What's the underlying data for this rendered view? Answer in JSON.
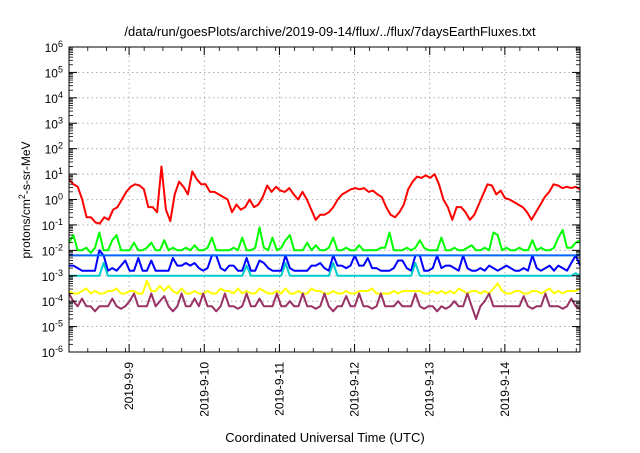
{
  "chart_data": {
    "type": "line",
    "title": "/data/run/goesPlots/archive/2019-09-14/flux/../flux/7daysEarthFluxes.txt",
    "xlabel": "Coordinated Universal Time (UTC)",
    "ylabel_main": "protons/cm",
    "ylabel_sup": "2",
    "ylabel_tail": "-s-sr-MeV",
    "x_ticks": [
      "2019-9-9",
      "2019-9-10",
      "2019-9-11",
      "2019-9-12",
      "2019-9-13",
      "2019-9-14"
    ],
    "y_ticks_exp": [
      "-6",
      "-5",
      "-4",
      "-3",
      "-2",
      "-1",
      "0",
      "1",
      "2",
      "3",
      "4",
      "5",
      "6"
    ],
    "y_tick_base": "10",
    "xlim_days": [
      0,
      6.8
    ],
    "ylim_log10": [
      -6,
      6
    ],
    "grid": true,
    "legend": "none",
    "x_unit": "days",
    "series": [
      {
        "color": "#ff0000",
        "log_values": [
          0.8,
          0.6,
          0.5,
          0.0,
          -0.7,
          -0.7,
          -0.9,
          -0.95,
          -0.7,
          -0.8,
          -0.4,
          -0.3,
          0.0,
          0.3,
          0.5,
          0.6,
          0.55,
          0.4,
          -0.3,
          -0.3,
          -0.5,
          1.3,
          -0.4,
          -0.85,
          0.2,
          0.7,
          0.5,
          0.2,
          1.1,
          0.8,
          0.6,
          0.6,
          0.3,
          0.3,
          0.2,
          0.1,
          0.0,
          -0.5,
          -0.2,
          -0.4,
          -0.3,
          0.0,
          -0.3,
          -0.2,
          0.1,
          0.55,
          0.3,
          0.5,
          0.35,
          0.3,
          0.45,
          0.2,
          0.0,
          0.3,
          0.0,
          -0.4,
          -0.8,
          -0.6,
          -0.6,
          -0.5,
          -0.3,
          0.0,
          0.2,
          0.3,
          0.4,
          0.45,
          0.4,
          0.45,
          0.3,
          0.35,
          0.2,
          0.1,
          -0.3,
          -0.6,
          -0.7,
          -0.5,
          -0.2,
          0.4,
          0.7,
          0.9,
          0.85,
          0.95,
          0.85,
          1.0,
          0.6,
          0.0,
          -0.3,
          -0.8,
          -0.3,
          -0.3,
          -0.5,
          -0.8,
          -0.6,
          -0.2,
          0.2,
          0.6,
          0.55,
          0.2,
          0.35,
          0.05,
          0.0,
          -0.1,
          -0.2,
          -0.3,
          -0.5,
          -0.8,
          -0.5,
          -0.2,
          0.1,
          0.3,
          0.6,
          0.55,
          0.45,
          0.5,
          0.45,
          0.5,
          0.4
        ]
      },
      {
        "color": "#00ff00",
        "log_values": [
          -1.7,
          -1.4,
          -2.0,
          -2.0,
          -1.9,
          -2.1,
          -1.9,
          -1.3,
          -2.0,
          -2.0,
          -1.6,
          -1.4,
          -2.0,
          -2.0,
          -2.0,
          -1.7,
          -2.0,
          -2.0,
          -1.9,
          -1.7,
          -2.0,
          -2.0,
          -1.6,
          -2.0,
          -1.9,
          -2.0,
          -2.0,
          -1.9,
          -2.0,
          -1.8,
          -2.0,
          -2.0,
          -1.9,
          -1.5,
          -2.0,
          -2.0,
          -2.0,
          -2.0,
          -1.9,
          -2.0,
          -1.5,
          -2.0,
          -2.0,
          -1.9,
          -1.1,
          -1.9,
          -2.0,
          -1.5,
          -2.0,
          -1.9,
          -1.6,
          -1.4,
          -2.0,
          -2.0,
          -2.0,
          -1.7,
          -2.0,
          -1.8,
          -2.0,
          -2.0,
          -1.9,
          -1.5,
          -2.0,
          -2.0,
          -1.9,
          -2.0,
          -2.0,
          -1.8,
          -2.0,
          -2.0,
          -2.0,
          -2.0,
          -1.9,
          -1.9,
          -1.3,
          -2.0,
          -2.0,
          -2.0,
          -1.9,
          -2.0,
          -1.9,
          -1.6,
          -1.9,
          -2.0,
          -2.0,
          -2.0,
          -1.5,
          -2.0,
          -2.0,
          -1.9,
          -2.0,
          -2.0,
          -1.9,
          -1.8,
          -2.0,
          -2.0,
          -1.9,
          -2.0,
          -1.3,
          -1.4,
          -2.0,
          -1.9,
          -2.0,
          -2.0,
          -1.9,
          -2.0,
          -2.0,
          -1.6,
          -2.0,
          -1.9,
          -2.0,
          -2.0,
          -1.9,
          -1.5,
          -1.2,
          -1.9,
          -1.9,
          -1.7,
          -1.6
        ]
      },
      {
        "color": "#0000ff",
        "log_values": [
          -2.6,
          -2.6,
          -2.7,
          -2.8,
          -2.8,
          -2.8,
          -2.8,
          -2.0,
          -2.2,
          -2.8,
          -2.7,
          -2.8,
          -2.6,
          -2.4,
          -2.8,
          -2.8,
          -2.3,
          -2.8,
          -2.8,
          -2.4,
          -2.8,
          -2.8,
          -2.8,
          -2.8,
          -2.3,
          -2.6,
          -2.6,
          -2.5,
          -2.6,
          -2.5,
          -2.7,
          -2.8,
          -2.7,
          -2.2,
          -2.2,
          -2.7,
          -2.8,
          -2.6,
          -2.6,
          -2.8,
          -2.8,
          -2.3,
          -2.8,
          -2.8,
          -2.4,
          -2.5,
          -2.7,
          -2.8,
          -2.8,
          -2.8,
          -2.2,
          -2.7,
          -2.8,
          -2.8,
          -2.8,
          -2.8,
          -2.6,
          -2.6,
          -2.5,
          -2.7,
          -2.8,
          -2.2,
          -2.6,
          -2.6,
          -2.7,
          -2.6,
          -2.2,
          -2.6,
          -2.6,
          -2.3,
          -2.7,
          -2.7,
          -2.8,
          -2.8,
          -2.8,
          -2.7,
          -2.4,
          -2.4,
          -2.7,
          -2.8,
          -2.2,
          -2.2,
          -2.8,
          -2.8,
          -2.7,
          -2.2,
          -2.7,
          -2.6,
          -2.6,
          -2.7,
          -2.8,
          -2.2,
          -2.7,
          -2.8,
          -2.8,
          -2.7,
          -2.8,
          -2.6,
          -2.7,
          -2.8,
          -2.7,
          -2.6,
          -2.7,
          -2.8,
          -2.8,
          -2.7,
          -2.8,
          -2.2,
          -2.7,
          -2.8,
          -2.7,
          -2.6,
          -2.8,
          -2.6,
          -2.7,
          -2.8,
          -2.5,
          -2.2,
          -2.6
        ]
      },
      {
        "color": "#0066ff",
        "log_values": [
          -2.2,
          -2.2,
          -2.2,
          -2.2,
          -2.2,
          -2.2,
          -2.2,
          -2.2,
          -2.2,
          -2.2,
          -2.2,
          -2.2,
          -2.2,
          -2.2,
          -2.2,
          -2.2,
          -2.2,
          -2.2,
          -2.2,
          -2.2,
          -2.2,
          -2.2,
          -2.2,
          -2.2,
          -2.2,
          -2.2,
          -2.2,
          -2.2,
          -2.2,
          -2.2,
          -2.2,
          -2.2,
          -2.2,
          -2.2,
          -2.2,
          -2.2,
          -2.2,
          -2.2,
          -2.2,
          -2.2,
          -2.2,
          -2.2,
          -2.2,
          -2.2,
          -2.2,
          -2.2,
          -2.2,
          -2.2,
          -2.2,
          -2.2,
          -2.2,
          -2.2,
          -2.2,
          -2.2,
          -2.2,
          -2.2,
          -2.2,
          -2.2,
          -2.2,
          -2.2,
          -2.2,
          -2.2,
          -2.2,
          -2.2,
          -2.2,
          -2.2,
          -2.2,
          -2.2,
          -2.2,
          -2.2,
          -2.2,
          -2.2,
          -2.2,
          -2.2,
          -2.2,
          -2.2,
          -2.2,
          -2.2,
          -2.2,
          -2.2,
          -2.2,
          -2.2,
          -2.2,
          -2.2,
          -2.2,
          -2.2,
          -2.2,
          -2.2,
          -2.2,
          -2.2,
          -2.2,
          -2.2,
          -2.2,
          -2.2,
          -2.2,
          -2.2,
          -2.2,
          -2.2,
          -2.2,
          -2.2,
          -2.2,
          -2.2,
          -2.2,
          -2.2,
          -2.2,
          -2.2,
          -2.2,
          -2.2,
          -2.2,
          -2.2,
          -2.2,
          -2.2,
          -2.2,
          -2.2,
          -2.2,
          -2.2,
          -2.2,
          -2.2,
          -2.2
        ]
      },
      {
        "color": "#00cccc",
        "log_values": [
          -3.0,
          -3.0,
          -3.0,
          -3.0,
          -3.0,
          -3.0,
          -3.0,
          -3.0,
          -2.5,
          -3.0,
          -3.0,
          -3.0,
          -3.0,
          -3.0,
          -3.0,
          -3.0,
          -3.0,
          -3.0,
          -3.0,
          -3.0,
          -3.0,
          -3.0,
          -3.0,
          -3.0,
          -3.0,
          -3.0,
          -3.0,
          -3.0,
          -3.0,
          -3.0,
          -3.0,
          -3.0,
          -3.0,
          -3.0,
          -3.0,
          -3.0,
          -3.0,
          -3.0,
          -3.0,
          -3.0,
          -3.0,
          -2.6,
          -3.0,
          -3.0,
          -3.0,
          -3.0,
          -3.0,
          -3.0,
          -3.0,
          -3.0,
          -2.5,
          -3.0,
          -3.0,
          -3.0,
          -3.0,
          -3.0,
          -3.0,
          -3.0,
          -3.0,
          -3.0,
          -3.0,
          -2.5,
          -3.0,
          -3.0,
          -3.0,
          -3.0,
          -3.0,
          -3.0,
          -3.0,
          -3.0,
          -3.0,
          -3.0,
          -3.0,
          -3.0,
          -3.0,
          -3.0,
          -3.0,
          -3.0,
          -3.0,
          -3.0,
          -2.5,
          -3.0,
          -3.0,
          -3.0,
          -3.0,
          -3.0,
          -3.0,
          -3.0,
          -3.0,
          -3.0,
          -3.0,
          -3.0,
          -3.0,
          -3.0,
          -3.0,
          -3.0,
          -3.0,
          -3.0,
          -3.0,
          -3.0,
          -3.0,
          -3.0,
          -3.0,
          -3.0,
          -3.0,
          -3.0,
          -3.0,
          -3.0,
          -3.0,
          -3.0,
          -3.0,
          -3.0,
          -3.0,
          -3.0,
          -3.0,
          -3.0,
          -3.0,
          -2.9,
          -3.0
        ]
      },
      {
        "color": "#ffff00",
        "log_values": [
          -3.6,
          -3.7,
          -3.7,
          -3.6,
          -3.5,
          -3.7,
          -3.6,
          -3.7,
          -3.7,
          -3.6,
          -3.6,
          -3.5,
          -3.7,
          -3.7,
          -3.6,
          -3.6,
          -3.7,
          -3.7,
          -3.2,
          -3.6,
          -3.6,
          -3.4,
          -3.6,
          -3.4,
          -3.6,
          -3.7,
          -3.5,
          -3.7,
          -3.7,
          -3.6,
          -3.7,
          -3.7,
          -3.6,
          -3.7,
          -3.7,
          -3.5,
          -3.6,
          -3.6,
          -3.7,
          -3.5,
          -3.7,
          -3.6,
          -3.7,
          -3.7,
          -3.5,
          -3.6,
          -3.7,
          -3.7,
          -3.6,
          -3.7,
          -3.5,
          -3.7,
          -3.7,
          -3.6,
          -3.7,
          -3.7,
          -3.5,
          -3.6,
          -3.6,
          -3.7,
          -3.7,
          -3.6,
          -3.7,
          -3.7,
          -3.6,
          -3.7,
          -3.7,
          -3.6,
          -3.6,
          -3.6,
          -3.5,
          -3.7,
          -3.7,
          -3.7,
          -3.7,
          -3.6,
          -3.7,
          -3.6,
          -3.6,
          -3.6,
          -3.6,
          -3.6,
          -3.7,
          -3.7,
          -3.6,
          -3.7,
          -3.6,
          -3.7,
          -3.6,
          -3.7,
          -3.5,
          -3.6,
          -3.7,
          -3.6,
          -3.6,
          -3.7,
          -3.6,
          -3.7,
          -3.5,
          -3.3,
          -3.6,
          -3.7,
          -3.7,
          -3.6,
          -3.6,
          -3.7,
          -3.7,
          -3.6,
          -3.6,
          -3.7,
          -3.6,
          -3.5,
          -3.7,
          -3.6,
          -3.7,
          -3.6,
          -3.6,
          -3.6,
          -3.5
        ]
      },
      {
        "color": "#993366",
        "log_values": [
          -3.7,
          -4.0,
          -4.2,
          -3.9,
          -4.2,
          -4.2,
          -4.4,
          -4.2,
          -4.2,
          -4.2,
          -3.9,
          -4.2,
          -4.3,
          -4.2,
          -4.0,
          -3.7,
          -4.2,
          -4.2,
          -4.2,
          -3.7,
          -4.2,
          -4.0,
          -3.8,
          -4.2,
          -4.4,
          -4.2,
          -3.7,
          -4.2,
          -4.2,
          -3.9,
          -4.2,
          -3.7,
          -4.2,
          -4.2,
          -4.4,
          -4.2,
          -3.7,
          -4.2,
          -4.2,
          -4.3,
          -4.2,
          -3.7,
          -4.2,
          -4.2,
          -3.9,
          -4.2,
          -4.2,
          -4.2,
          -3.7,
          -4.2,
          -4.2,
          -4.0,
          -4.2,
          -4.2,
          -3.7,
          -4.2,
          -4.2,
          -4.3,
          -4.2,
          -3.7,
          -4.2,
          -4.4,
          -4.2,
          -4.2,
          -3.8,
          -4.2,
          -4.2,
          -3.7,
          -4.2,
          -4.2,
          -4.3,
          -4.2,
          -3.7,
          -4.2,
          -4.2,
          -4.2,
          -4.0,
          -4.2,
          -4.2,
          -4.2,
          -3.7,
          -4.2,
          -4.3,
          -4.2,
          -4.2,
          -4.4,
          -4.2,
          -4.3,
          -4.2,
          -4.0,
          -4.2,
          -4.2,
          -3.7,
          -4.2,
          -4.7,
          -4.2,
          -4.0,
          -3.7,
          -4.2,
          -4.2,
          -4.2,
          -4.2,
          -4.2,
          -4.2,
          -4.2,
          -3.8,
          -4.2,
          -4.3,
          -4.2,
          -4.2,
          -3.7,
          -4.2,
          -4.2,
          -4.2,
          -4.3,
          -4.2,
          -3.9,
          -4.2,
          -4.3
        ]
      }
    ]
  }
}
